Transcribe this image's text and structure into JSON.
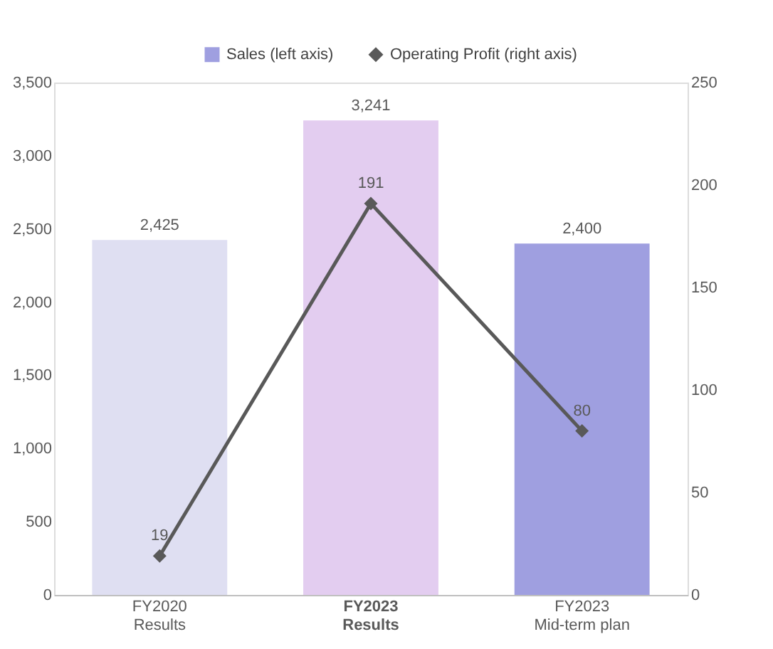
{
  "chart_data": {
    "type": "bar",
    "categories": [
      "FY2020\nResults",
      "FY2023\nResults",
      "FY2023\nMid-term plan"
    ],
    "series": [
      {
        "name": "Sales (left axis)",
        "color": "#9f9fe0",
        "colors": [
          "#dfdff2",
          "#e3cdf0",
          "#9f9fe0"
        ],
        "values": [
          2425,
          3241,
          2400
        ],
        "value_labels": [
          "2,425",
          "3,241",
          "2,400"
        ]
      },
      {
        "name": "Operating Profit (right axis)",
        "type": "line",
        "axis": "y2",
        "color": "#595959",
        "marker": "diamond",
        "values": [
          19,
          191,
          80
        ]
      }
    ],
    "ylim": [
      0,
      3500
    ],
    "yticks": [
      0,
      500,
      {
        "value": 1000,
        "label": "1,000"
      },
      {
        "value": 1500,
        "label": "1,500"
      },
      {
        "value": 2000,
        "label": "2,000"
      },
      {
        "value": 2500,
        "label": "2,500"
      },
      {
        "value": 3000,
        "label": "3,000"
      },
      {
        "value": 3500,
        "label": "3,500"
      }
    ],
    "y2lim": [
      0,
      250
    ],
    "y2ticks": [
      0,
      50,
      100,
      150,
      200,
      250
    ],
    "data_labels": true,
    "legend": "top",
    "grid": false
  }
}
